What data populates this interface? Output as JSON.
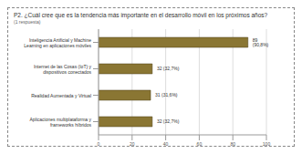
{
  "chart_data": {
    "type": "bar",
    "title": "P2. ¿Cuál cree que es la tendencia más importante en el desarrollo móvil en los próximos años?",
    "subtitle": "(1 respuesta)",
    "orientation": "horizontal",
    "categories": [
      "Inteligencia Artificial y Machine Learning en aplicaciones móviles",
      "Internet de las Cosas (IoT) y dispositivos conectados",
      "Realidad Aumentada y Virtual",
      "Aplicaciones multiplataforma y frameworks híbridos"
    ],
    "values": [
      89,
      32,
      31,
      32
    ],
    "value_labels": [
      "89 (90,8%)",
      "32 (32,7%)",
      "31 (31,6%)",
      "32 (32,7%)"
    ],
    "data_labels": true,
    "color": "#8a7633",
    "xlim": [
      0,
      100
    ],
    "xticks": [
      0,
      20,
      40,
      60,
      80,
      100
    ],
    "grid": true
  }
}
